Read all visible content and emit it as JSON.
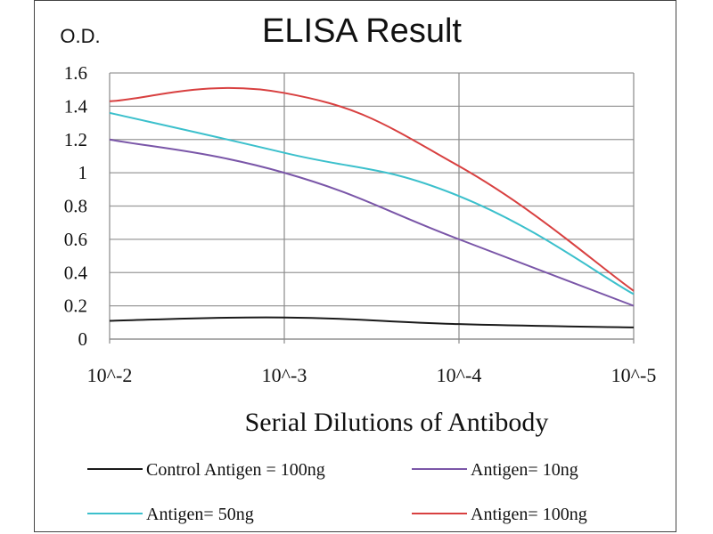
{
  "chart_data": {
    "type": "line",
    "title": "ELISA Result",
    "ylabel": "O.D.",
    "xlabel": "Serial Dilutions  of Antibody",
    "categories": [
      "10^-2",
      "10^-3",
      "10^-4",
      "10^-5"
    ],
    "ylim": [
      0,
      1.6
    ],
    "yticks": [
      "0",
      "0.2",
      "0.4",
      "0.6",
      "0.8",
      "1",
      "1.2",
      "1.4",
      "1.6"
    ],
    "grid": true,
    "legend_position": "bottom",
    "series": [
      {
        "name": "Control Antigen = 100ng",
        "color": "#1a1a1a",
        "values": [
          0.11,
          0.13,
          0.09,
          0.07
        ]
      },
      {
        "name": "Antigen= 10ng",
        "color": "#7a56a8",
        "values": [
          1.2,
          1.0,
          0.6,
          0.2
        ]
      },
      {
        "name": "Antigen= 50ng",
        "color": "#3cc0cc",
        "values": [
          1.36,
          1.12,
          0.86,
          0.27
        ]
      },
      {
        "name": "Antigen= 100ng",
        "color": "#d84040",
        "values": [
          1.43,
          1.48,
          1.04,
          0.29
        ]
      }
    ]
  }
}
